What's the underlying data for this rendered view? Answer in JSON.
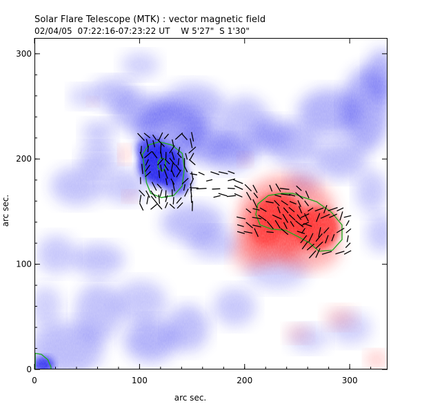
{
  "header": {
    "title": "Solar Flare Telescope (MTK) : vector magnetic field",
    "subtitle": "02/04/05  07:22:16-07:23:22 UT    W 5'27\"  S 1'30\""
  },
  "chart_data": {
    "type": "heatmap",
    "title": "Solar Flare Telescope (MTK) : vector magnetic field",
    "subtitle": "02/04/05  07:22:16-07:23:22 UT    W 5'27\"  S 1'30\"",
    "xlabel": "arc sec.",
    "ylabel": "arc sec.",
    "xlim": [
      0,
      336
    ],
    "ylim": [
      0,
      315
    ],
    "xticks": [
      0,
      100,
      200,
      300
    ],
    "yticks": [
      0,
      100,
      200,
      300
    ],
    "colors": {
      "negative_polarity": "#2222ee",
      "positive_polarity": "#ff3333",
      "contour": "#22aa22",
      "vectors": "#000000"
    },
    "contours": [
      {
        "polarity": "negative",
        "points": [
          [
            102,
            205
          ],
          [
            108,
            214
          ],
          [
            118,
            217
          ],
          [
            130,
            214
          ],
          [
            140,
            206
          ],
          [
            142,
            192
          ],
          [
            140,
            175
          ],
          [
            132,
            166
          ],
          [
            120,
            164
          ],
          [
            110,
            168
          ],
          [
            106,
            178
          ],
          [
            104,
            192
          ]
        ]
      },
      {
        "polarity": "negative",
        "points": [
          [
            117,
            198
          ],
          [
            120,
            202
          ],
          [
            124,
            200
          ],
          [
            124,
            193
          ],
          [
            121,
            189
          ],
          [
            117,
            192
          ]
        ]
      },
      {
        "polarity": "positive",
        "points": [
          [
            212,
            158
          ],
          [
            222,
            166
          ],
          [
            235,
            168
          ],
          [
            245,
            168
          ],
          [
            256,
            164
          ],
          [
            268,
            160
          ],
          [
            282,
            150
          ],
          [
            292,
            138
          ],
          [
            292,
            124
          ],
          [
            283,
            114
          ],
          [
            270,
            113
          ],
          [
            261,
            121
          ],
          [
            250,
            127
          ],
          [
            238,
            133
          ],
          [
            225,
            134
          ],
          [
            214,
            138
          ],
          [
            210,
            148
          ]
        ]
      },
      {
        "polarity": "negative",
        "points": [
          [
            0,
            16
          ],
          [
            6,
            15
          ],
          [
            12,
            10
          ],
          [
            15,
            3
          ],
          [
            15,
            0
          ],
          [
            0,
            0
          ]
        ]
      }
    ]
  }
}
